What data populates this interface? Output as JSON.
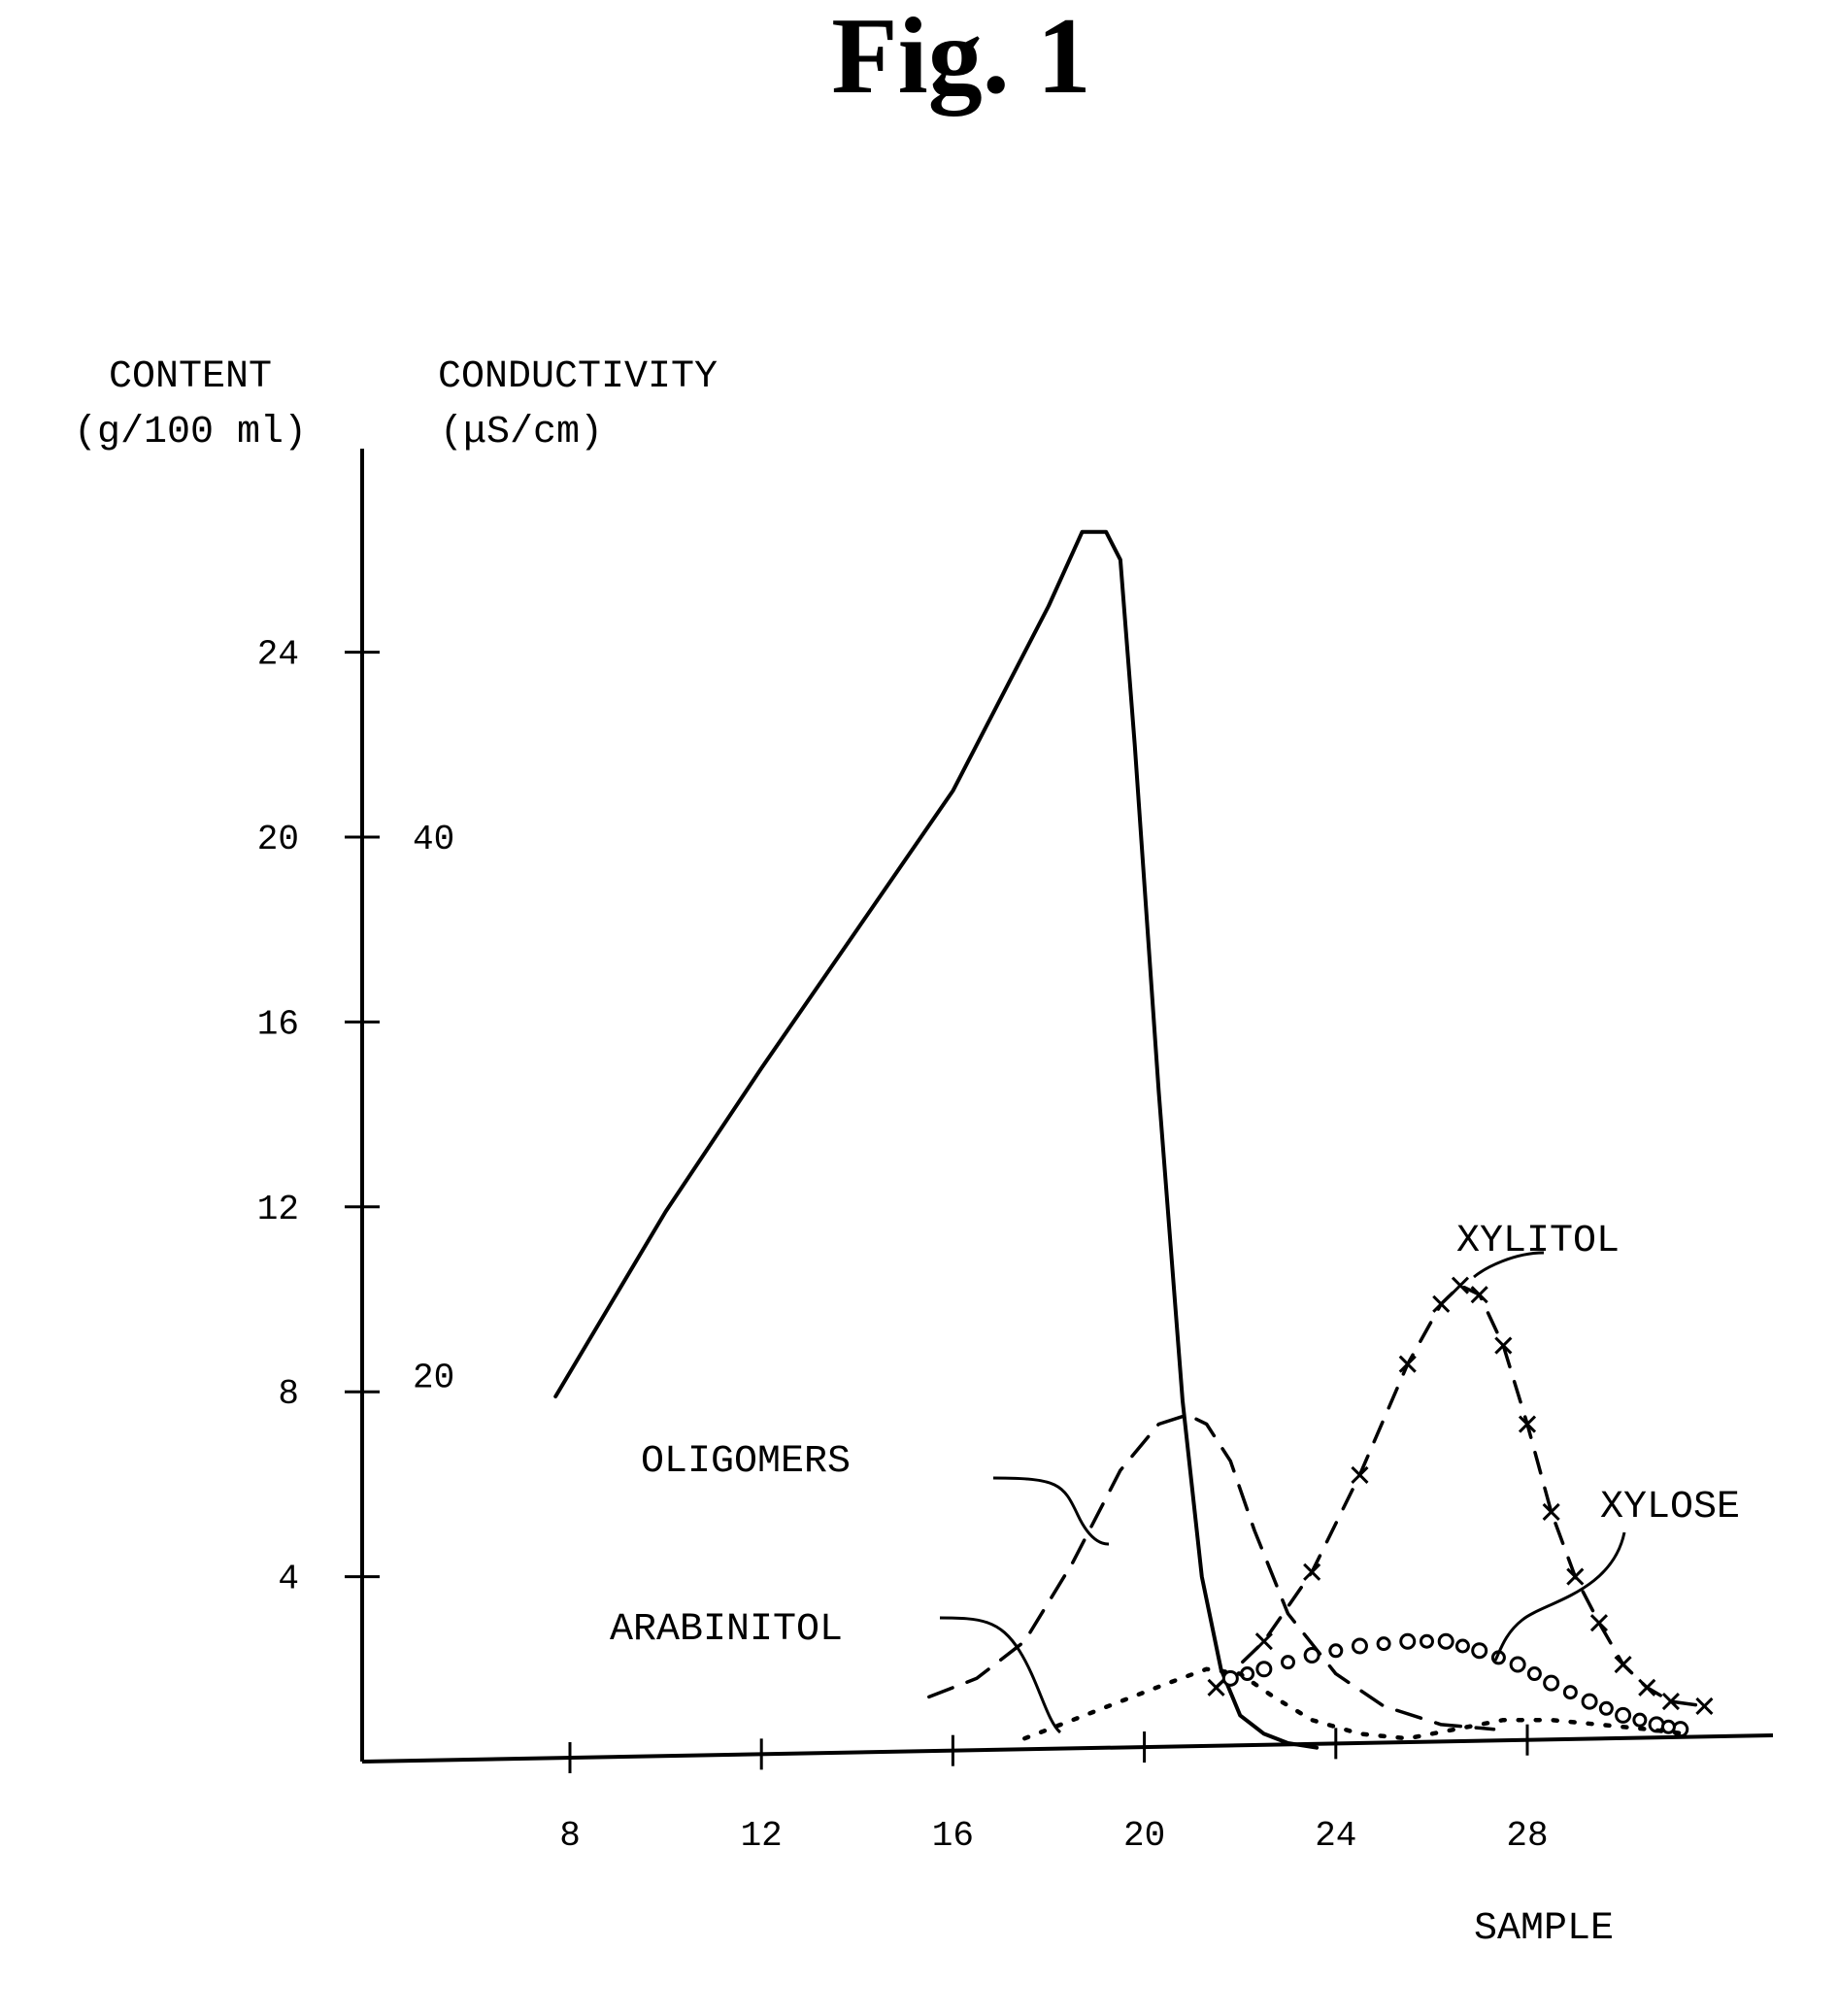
{
  "figure_title": "Fig. 1",
  "chart_data": {
    "type": "line",
    "x_axis": {
      "label": "SAMPLE",
      "ticks": [
        8,
        12,
        16,
        20,
        24,
        28
      ],
      "range": [
        3.5,
        33
      ]
    },
    "y_axis_left": {
      "label": "CONTENT",
      "unit": "(g/100 ml)",
      "ticks": [
        4,
        8,
        12,
        16,
        20,
        24
      ],
      "range": [
        0,
        28
      ]
    },
    "y_axis_right": {
      "label": "CONDUCTIVITY",
      "unit": "(μS/cm)",
      "ticks": [
        20,
        40
      ],
      "note": "conductivity tick 20 aligned at content ≈ 8.4, tick 40 at content 20"
    },
    "series": [
      {
        "name": "",
        "axis": "conductivity",
        "style": "solid",
        "x": [
          7.7,
          10,
          12,
          14,
          16,
          17,
          18,
          18.7,
          19.2,
          19.5,
          19.8,
          20.3,
          20.8,
          21.2,
          21.6,
          22,
          22.5,
          23,
          23.6
        ],
        "y": [
          7.9,
          11.9,
          15.0,
          18.0,
          21.0,
          23.0,
          25.0,
          26.6,
          26.6,
          26.0,
          22.0,
          14.5,
          7.8,
          4.0,
          2.0,
          1.0,
          0.6,
          0.4,
          0.3
        ]
      },
      {
        "name": "OLIGOMERS",
        "axis": "content",
        "style": "dashed",
        "x": [
          15.5,
          16.5,
          17.5,
          18.5,
          19.5,
          20.3,
          20.9,
          21.3,
          21.8,
          22.3,
          23,
          24,
          25,
          26.2,
          27.3
        ],
        "y": [
          1.4,
          1.8,
          2.6,
          4.3,
          6.3,
          7.3,
          7.5,
          7.3,
          6.5,
          5.0,
          3.2,
          1.9,
          1.2,
          0.8,
          0.7
        ]
      },
      {
        "name": "XYLITOL",
        "axis": "content",
        "style": "dashed-cross",
        "x": [
          21.5,
          22.5,
          23.5,
          24.5,
          25.5,
          26.2,
          26.6,
          27,
          27.5,
          28,
          28.5,
          29,
          29.5,
          30,
          30.5,
          31,
          31.7
        ],
        "y": [
          1.6,
          2.6,
          4.1,
          6.2,
          8.6,
          9.9,
          10.3,
          10.1,
          9.0,
          7.3,
          5.4,
          4.0,
          3.0,
          2.1,
          1.6,
          1.3,
          1.2
        ]
      },
      {
        "name": "XYLOSE",
        "axis": "content",
        "style": "open-circles",
        "x": [
          21.8,
          22.5,
          23.5,
          24.5,
          25.5,
          26.3,
          27,
          27.8,
          28.5,
          29.3,
          30,
          30.7,
          31.2
        ],
        "y": [
          1.8,
          2.0,
          2.3,
          2.5,
          2.6,
          2.6,
          2.4,
          2.1,
          1.7,
          1.3,
          1.0,
          0.8,
          0.7
        ]
      },
      {
        "name": "ARABINITOL",
        "axis": "content",
        "style": "dotted",
        "x": [
          17.5,
          18.5,
          19.5,
          20.5,
          21.3,
          22,
          22.7,
          23.5,
          24.5,
          25.5,
          26.5,
          27.5,
          28.5,
          29.5,
          30.5,
          31.3
        ],
        "y": [
          0.5,
          0.9,
          1.3,
          1.7,
          2.0,
          1.9,
          1.4,
          0.9,
          0.6,
          0.5,
          0.7,
          0.9,
          0.9,
          0.8,
          0.7,
          0.6
        ]
      }
    ],
    "annotations": [
      "OLIGOMERS",
      "ARABINITOL",
      "XYLITOL",
      "XYLOSE"
    ],
    "grid": false,
    "legend": "none (inline labels with leader lines)"
  }
}
